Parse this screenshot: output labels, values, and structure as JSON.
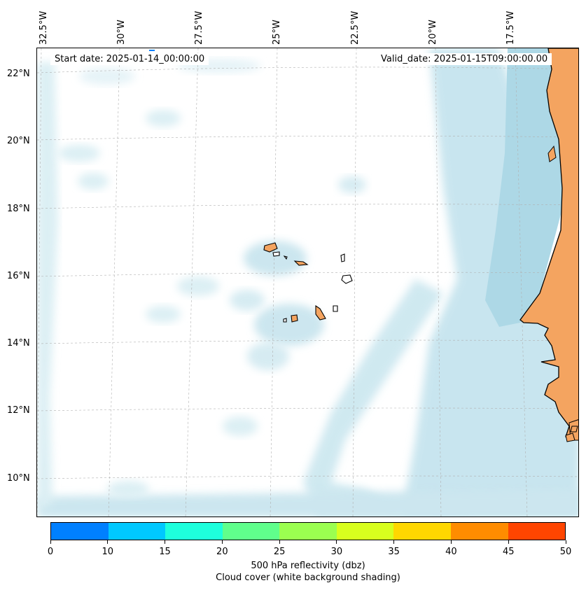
{
  "map": {
    "start_date": "Start date: 2025-01-14_00:00:00",
    "valid_date": "Valid_date: 2025-01-15T09:00:00.00",
    "lon_labels": [
      "32.5°W",
      "30°W",
      "27.5°W",
      "25°W",
      "22.5°W",
      "20°W",
      "17.5°W"
    ],
    "lat_labels": [
      "22°N",
      "20°N",
      "18°N",
      "16°N",
      "14°N",
      "12°N",
      "10°N"
    ],
    "ocean_color": "#add8e6",
    "land_color": "#f4a460",
    "cloud_color": "#bfe1ec"
  },
  "colorbar": {
    "colors": [
      "#0080ff",
      "#00c8ff",
      "#1effdc",
      "#60ff8c",
      "#9bff50",
      "#d8ff1e",
      "#ffd700",
      "#ff8c00",
      "#ff4500"
    ],
    "ticks": [
      "0",
      "10",
      "15",
      "20",
      "25",
      "30",
      "35",
      "40",
      "45",
      "50"
    ],
    "title": "500 hPa reflectivity (dbz)",
    "subtitle": "Cloud cover (white background shading)"
  }
}
